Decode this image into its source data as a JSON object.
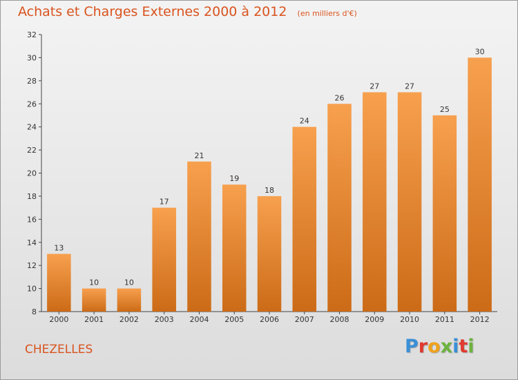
{
  "header": {
    "title": "Achats et Charges Externes 2000 à 2012",
    "unit": "(en milliers d'€)"
  },
  "commune": "CHEZELLES",
  "logo": {
    "text": "Proxiti",
    "letters": [
      "P",
      "r",
      "o",
      "x",
      "i",
      "t",
      "i"
    ],
    "colors": [
      "#3a8fd6",
      "#e03a2f",
      "#f0a21a",
      "#6cb33f",
      "#3a8fd6",
      "#e03a2f",
      "#6cb33f"
    ]
  },
  "colors": {
    "bar_top": "#f7a04e",
    "bar_bottom": "#cc6b17",
    "text_accent": "#d9531e"
  },
  "chart_data": {
    "type": "bar",
    "title": "Achats et Charges Externes 2000 à 2012",
    "subtitle": "(en milliers d'€)",
    "categories": [
      "2000",
      "2001",
      "2002",
      "2003",
      "2004",
      "2005",
      "2006",
      "2007",
      "2008",
      "2009",
      "2010",
      "2011",
      "2012"
    ],
    "values": [
      13,
      10,
      10,
      17,
      21,
      19,
      18,
      24,
      26,
      27,
      27,
      25,
      30
    ],
    "data_labels": [
      "13",
      "10",
      "10",
      "17",
      "21",
      "19",
      "18",
      "24",
      "26",
      "27",
      "27",
      "25",
      "30"
    ],
    "y_ticks": [
      "8",
      "10",
      "12",
      "14",
      "16",
      "18",
      "20",
      "22",
      "24",
      "26",
      "28",
      "30",
      "32"
    ],
    "ylim": [
      8,
      32
    ],
    "grid": false,
    "legend": "none"
  }
}
